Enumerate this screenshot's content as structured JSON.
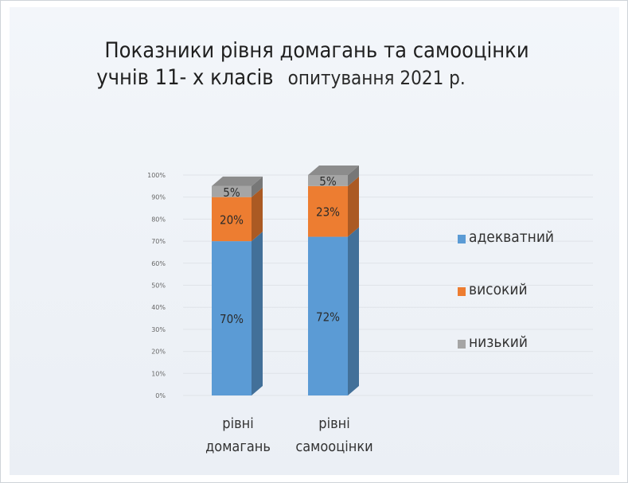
{
  "title_line1": "Показники рівня домагань та самооцінки",
  "title_line2": "учнів 11- х класів",
  "title_sub": "опитування 2021 р.",
  "colors": {
    "адекватний": "#5b9bd5",
    "високий": "#ed7d31",
    "низький": "#a5a5a5"
  },
  "chart_data": {
    "type": "bar",
    "stacked": true,
    "categories": [
      "рівні домагань",
      "рівні самооцінки"
    ],
    "category_lines": [
      [
        "рівні",
        "домагань"
      ],
      [
        "рівні",
        "самооцінки"
      ]
    ],
    "series": [
      {
        "name": "адекватний",
        "values": [
          70,
          72
        ],
        "labels": [
          "70%",
          "72%"
        ]
      },
      {
        "name": "високий",
        "values": [
          20,
          23
        ],
        "labels": [
          "20%",
          "23%"
        ]
      },
      {
        "name": "низький",
        "values": [
          5,
          5
        ],
        "labels": [
          "5%",
          "5%"
        ]
      }
    ],
    "ylim": [
      0,
      100
    ],
    "y_ticks": [
      "0%",
      "10%",
      "20%",
      "30%",
      "40%",
      "50%",
      "60%",
      "70%",
      "80%",
      "90%",
      "100%"
    ],
    "legend_position": "right",
    "grid": true
  }
}
